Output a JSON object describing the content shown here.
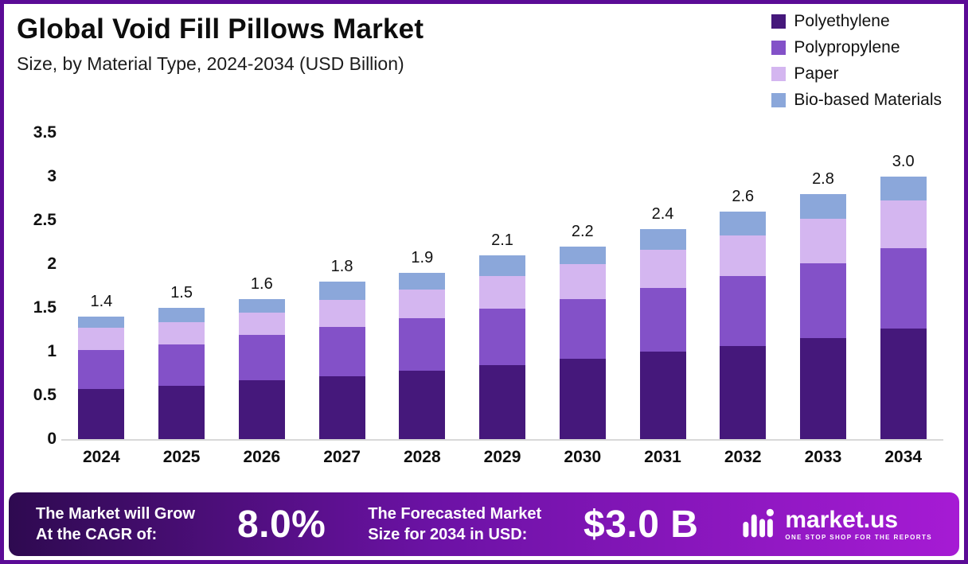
{
  "header": {
    "title": "Global Void Fill Pillows Market",
    "subtitle": "Size, by Material Type, 2024-2034 (USD Billion)"
  },
  "chart_data": {
    "type": "bar",
    "stacked": true,
    "title": "Global Void Fill Pillows Market Size, by Material Type, 2024-2034 (USD Billion)",
    "xlabel": "",
    "ylabel": "USD Billion",
    "ylim": [
      0,
      3.5
    ],
    "ytick_step": 0.5,
    "grid": false,
    "legend_position": "top-right",
    "categories": [
      "2024",
      "2025",
      "2026",
      "2027",
      "2028",
      "2029",
      "2030",
      "2031",
      "2032",
      "2033",
      "2034"
    ],
    "series": [
      {
        "name": "Polyethylene",
        "color": "#45187b",
        "values": [
          0.57,
          0.61,
          0.67,
          0.72,
          0.78,
          0.85,
          0.92,
          1.0,
          1.06,
          1.15,
          1.26
        ]
      },
      {
        "name": "Polypropylene",
        "color": "#8351c8",
        "values": [
          0.45,
          0.47,
          0.52,
          0.56,
          0.6,
          0.64,
          0.68,
          0.73,
          0.8,
          0.86,
          0.92
        ]
      },
      {
        "name": "Paper",
        "color": "#d4b6f0",
        "values": [
          0.25,
          0.26,
          0.26,
          0.31,
          0.33,
          0.37,
          0.4,
          0.43,
          0.47,
          0.51,
          0.55
        ]
      },
      {
        "name": "Bio-based Materials",
        "color": "#8ba7da",
        "values": [
          0.13,
          0.16,
          0.15,
          0.21,
          0.19,
          0.24,
          0.2,
          0.24,
          0.27,
          0.28,
          0.27
        ]
      }
    ],
    "totals": [
      1.4,
      1.5,
      1.6,
      1.8,
      1.9,
      2.1,
      2.2,
      2.4,
      2.6,
      2.8,
      3.0
    ]
  },
  "footer": {
    "cagr_label_line1": "The Market will Grow",
    "cagr_label_line2": "At the CAGR of:",
    "cagr_value": "8.0%",
    "forecast_label_line1": "The Forecasted Market",
    "forecast_label_line2": "Size for 2034 in USD:",
    "forecast_value": "$3.0 B",
    "brand": {
      "name": "market.us",
      "tagline": "ONE STOP SHOP FOR THE REPORTS"
    }
  },
  "colors": {
    "frame_border": "#5b0b96",
    "footer_gradient_start": "#2e0a50",
    "footer_gradient_mid": "#6c12a5",
    "footer_gradient_end": "#a61bd4",
    "axis_line": "#d8d8d8"
  }
}
